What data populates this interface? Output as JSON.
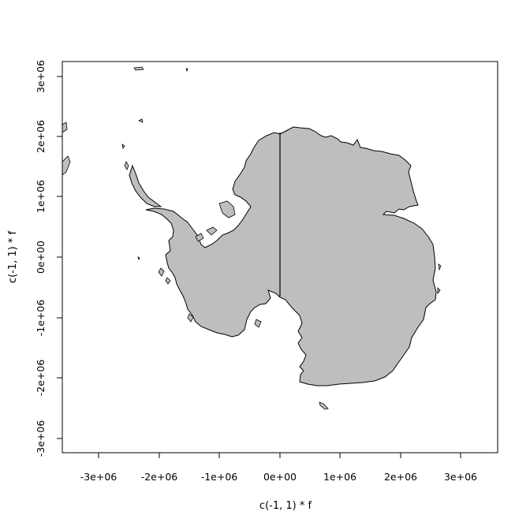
{
  "plot": {
    "xlabel": "c(-1, 1) * f",
    "ylabel": "c(-1, 1) * f",
    "x_ticks": [
      "-3e+06",
      "-2e+06",
      "-1e+06",
      "0e+00",
      "1e+06",
      "2e+06",
      "3e+06"
    ],
    "y_ticks": [
      "-3e+06",
      "-2e+06",
      "-1e+06",
      "0e+00",
      "1e+06",
      "2e+06",
      "3e+06"
    ],
    "xlim": [
      -3600000,
      3600000
    ],
    "ylim": [
      -3240000,
      3240000
    ],
    "land_color": "#bebebe",
    "outline_color": "#000000",
    "map": "Antarctica (polar stereographic projection)"
  }
}
